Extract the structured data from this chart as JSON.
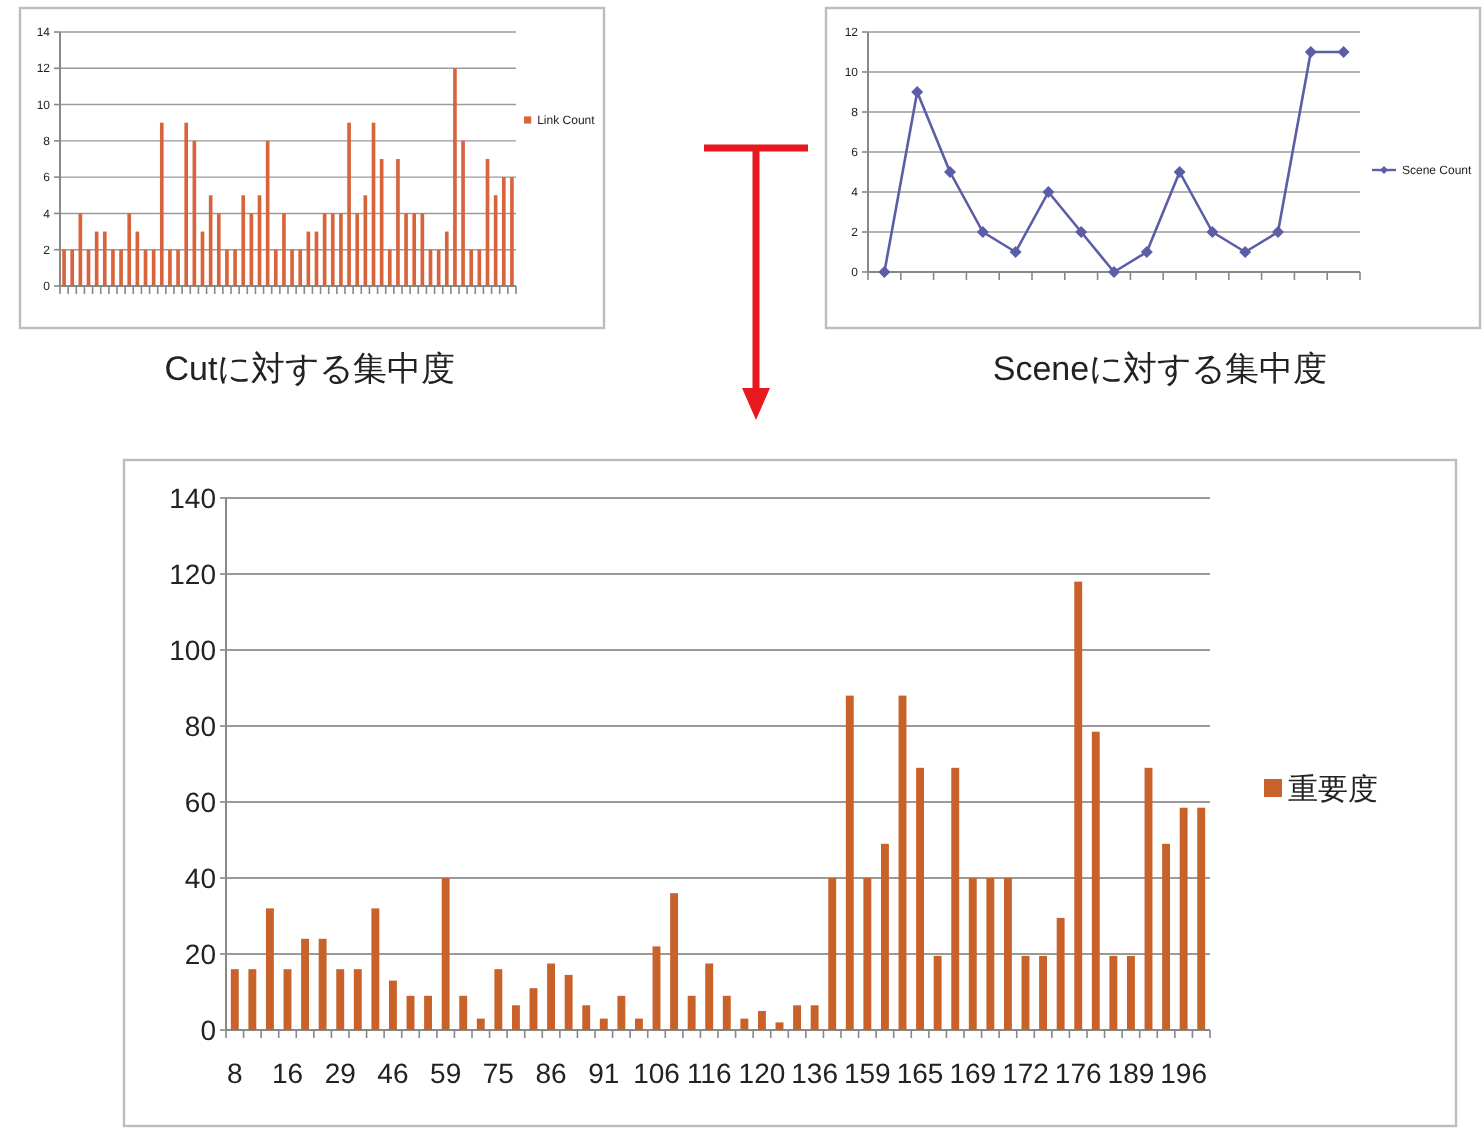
{
  "chart_data": [
    {
      "type": "bar",
      "categories": [
        null,
        null,
        null,
        null,
        null,
        null,
        null,
        null,
        null,
        null,
        null,
        null,
        null,
        null,
        null,
        null,
        null,
        null,
        null,
        null,
        null,
        null,
        null,
        null,
        null,
        null,
        null,
        null,
        null,
        null,
        null,
        null,
        null,
        null,
        null,
        null,
        null,
        null,
        null,
        null,
        null,
        null,
        null,
        null,
        null,
        null,
        null,
        null,
        null,
        null,
        null,
        null,
        null,
        null,
        null,
        null
      ],
      "series": [
        {
          "name": "Link Count",
          "color": "#d9643c",
          "values": [
            2,
            2,
            4,
            2,
            3,
            3,
            2,
            2,
            4,
            3,
            2,
            2,
            9,
            2,
            2,
            9,
            8,
            3,
            5,
            4,
            2,
            2,
            5,
            4,
            5,
            8,
            2,
            4,
            2,
            2,
            3,
            3,
            4,
            4,
            4,
            9,
            4,
            5,
            9,
            7,
            2,
            7,
            4,
            4,
            4,
            2,
            2,
            3,
            12,
            8,
            2,
            2,
            7,
            5,
            6,
            6
          ]
        }
      ],
      "ylim": [
        0,
        14
      ],
      "yticks": [
        0,
        2,
        4,
        6,
        8,
        10,
        12,
        14
      ],
      "grid": "y",
      "legend": "right",
      "tick_labels": "y",
      "annotations": [
        "Cutに対する集中度"
      ]
    },
    {
      "type": "line",
      "categories": [
        null,
        null,
        null,
        null,
        null,
        null,
        null,
        null,
        null,
        null,
        null,
        null,
        null,
        null,
        null
      ],
      "series": [
        {
          "name": "Scene Count",
          "color": "#5b5ea6",
          "values": [
            0,
            9,
            5,
            2,
            1,
            4,
            2,
            0,
            1,
            5,
            2,
            1,
            2,
            11,
            11
          ]
        }
      ],
      "ylim": [
        0,
        12
      ],
      "yticks": [
        0,
        2,
        4,
        6,
        8,
        10,
        12
      ],
      "grid": "y",
      "legend": "right",
      "tick_labels": "y",
      "marker": "diamond",
      "annotations": [
        "Sceneに対する集中度"
      ]
    },
    {
      "type": "bar",
      "categories": [
        "8",
        null,
        null,
        "16",
        null,
        null,
        "29",
        null,
        null,
        "46",
        null,
        null,
        "59",
        null,
        null,
        "75",
        null,
        null,
        "86",
        null,
        null,
        "91",
        null,
        null,
        "106",
        null,
        null,
        "116",
        null,
        null,
        "120",
        null,
        null,
        "136",
        null,
        null,
        "159",
        null,
        null,
        "165",
        null,
        null,
        "169",
        null,
        null,
        "172",
        null,
        null,
        "176",
        null,
        null,
        "189",
        null,
        null,
        "196",
        null
      ],
      "series": [
        {
          "name": "重要度",
          "color": "#c8622a",
          "values": [
            16,
            16,
            32,
            16,
            24,
            24,
            16,
            16,
            32,
            13,
            9,
            9,
            40,
            9,
            3,
            16,
            6.5,
            11,
            17.5,
            14.5,
            6.5,
            3,
            9,
            3,
            22,
            36,
            9,
            17.5,
            9,
            3,
            5,
            2,
            6.5,
            6.5,
            40,
            88,
            40,
            49,
            88,
            69,
            19.5,
            69,
            40,
            40,
            40,
            19.5,
            19.5,
            29.5,
            118,
            78.5,
            19.5,
            19.5,
            69,
            49,
            58.5,
            58.5
          ]
        }
      ],
      "ylim": [
        0,
        140
      ],
      "yticks": [
        0,
        20,
        40,
        60,
        80,
        100,
        120,
        140
      ],
      "grid": "y",
      "legend": "right"
    }
  ]
}
